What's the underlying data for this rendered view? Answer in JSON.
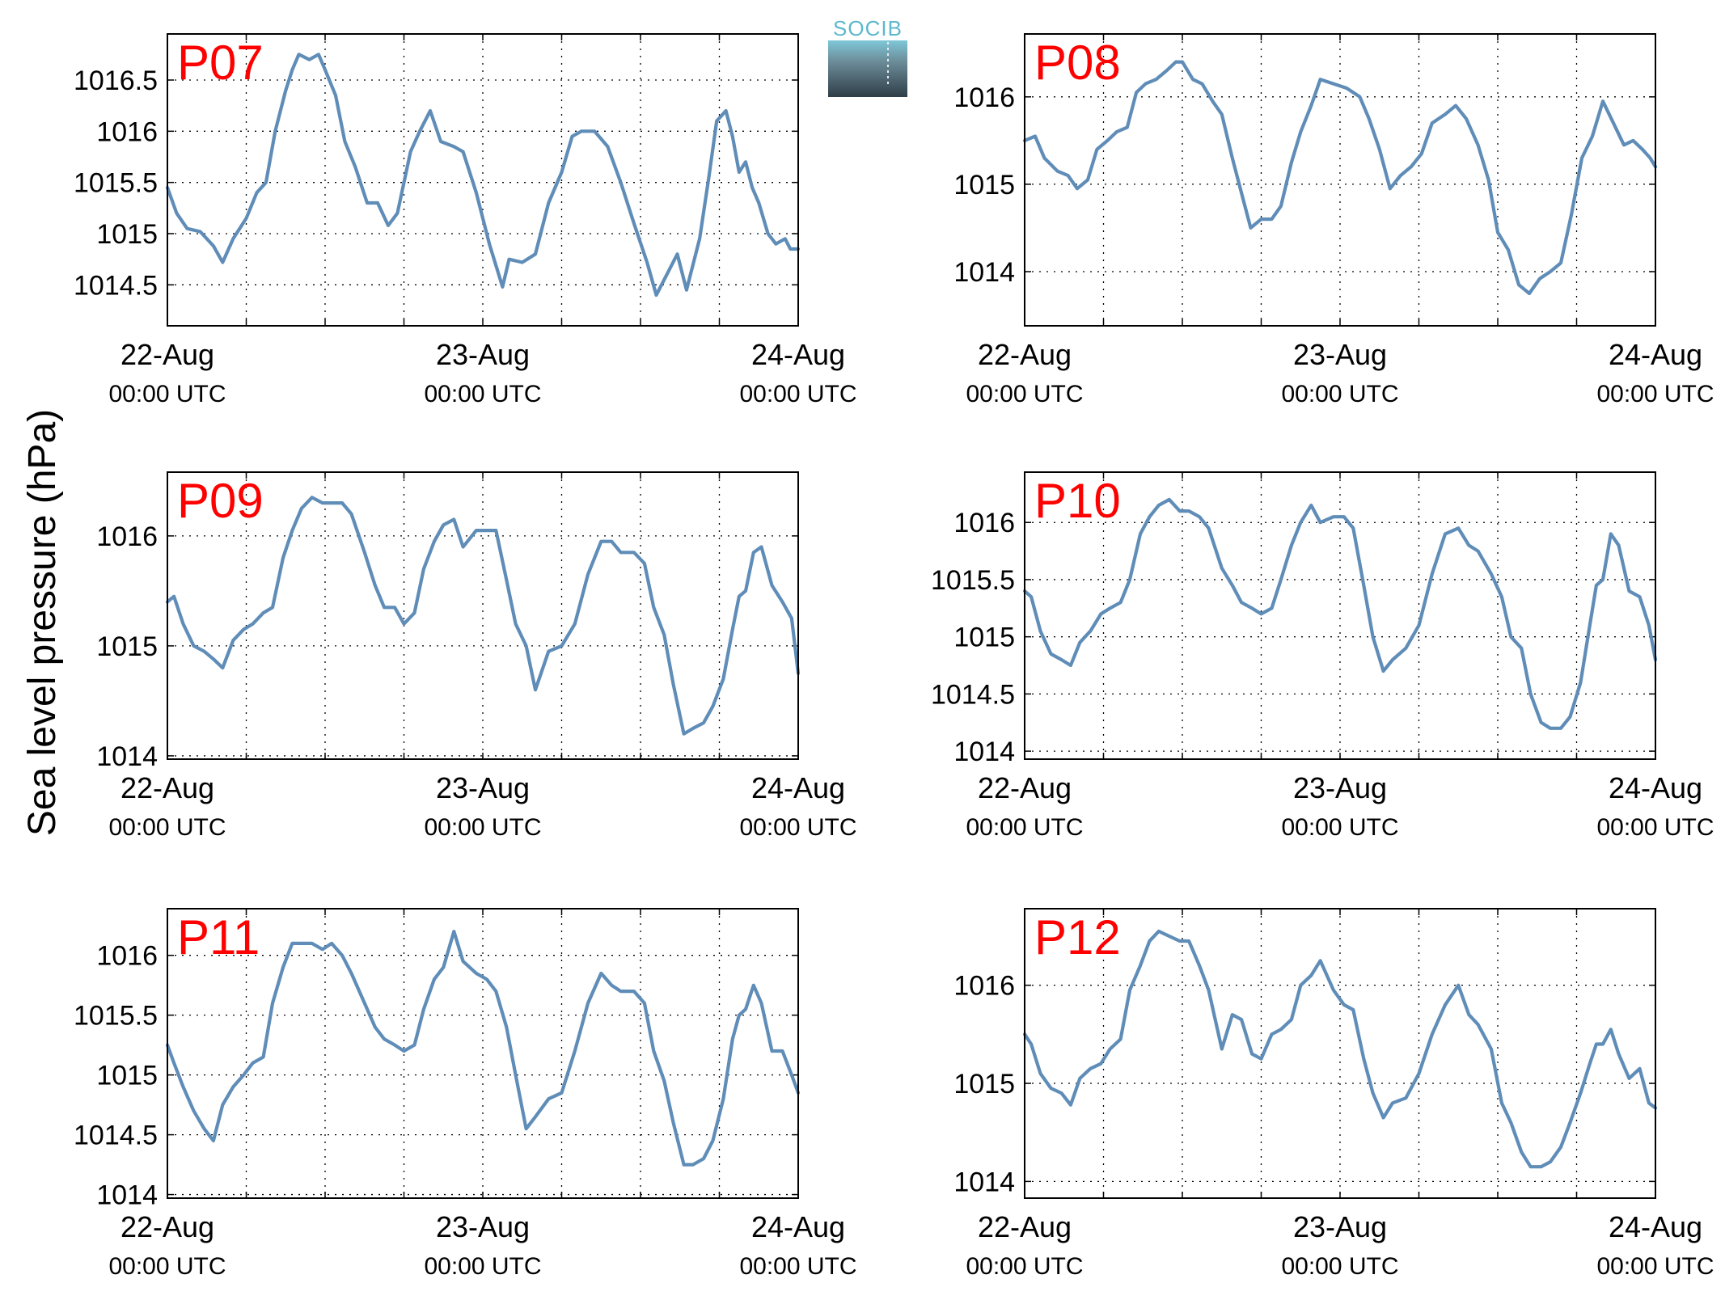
{
  "figure": {
    "ylabel": "Sea level pressure (hPa)",
    "logo_text": "SOCIB"
  },
  "chart_data": [
    {
      "type": "line",
      "label": "P07",
      "ylim": [
        1014.1,
        1016.95
      ],
      "xlim": [
        0,
        48
      ],
      "yticks": [
        1014.5,
        1015,
        1015.5,
        1016,
        1016.5
      ],
      "ytick_labels": [
        "1014.5",
        "1015",
        "1015.5",
        "1016",
        "1016.5"
      ],
      "xtick_labels": [
        [
          "22-Aug",
          "00:00 UTC"
        ],
        [
          "23-Aug",
          "00:00 UTC"
        ],
        [
          "24-Aug",
          "00:00 UTC"
        ]
      ],
      "grid": true,
      "color": "#5f8db8",
      "x": [
        0,
        0.7,
        1.5,
        2.5,
        3.5,
        4.2,
        5,
        6,
        6.8,
        7.5,
        8.2,
        9,
        9.5,
        10,
        10.8,
        11.5,
        12,
        12.8,
        13.5,
        14.3,
        15.2,
        16,
        16.8,
        17.5,
        18.5,
        19.2,
        20,
        20.8,
        21.8,
        22.5,
        23.5,
        24.5,
        25.5,
        26,
        27,
        28,
        29,
        30,
        30.8,
        31.5,
        32.5,
        33.5,
        34.5,
        35.5,
        36.5,
        37.2,
        38,
        38.8,
        39.5,
        40.5,
        41.2,
        41.8,
        42.5,
        43,
        43.5,
        44,
        44.5,
        45,
        45.7,
        46.3,
        47,
        47.4,
        48
      ],
      "y": [
        1015.45,
        1015.2,
        1015.05,
        1015.02,
        1014.88,
        1014.72,
        1014.95,
        1015.15,
        1015.4,
        1015.5,
        1016.0,
        1016.4,
        1016.6,
        1016.75,
        1016.7,
        1016.75,
        1016.6,
        1016.35,
        1015.9,
        1015.65,
        1015.3,
        1015.3,
        1015.08,
        1015.2,
        1015.8,
        1016.0,
        1016.2,
        1015.9,
        1015.85,
        1015.8,
        1015.4,
        1014.9,
        1014.48,
        1014.75,
        1014.72,
        1014.8,
        1015.3,
        1015.6,
        1015.95,
        1016.0,
        1016.0,
        1015.85,
        1015.5,
        1015.1,
        1014.72,
        1014.4,
        1014.6,
        1014.8,
        1014.45,
        1014.95,
        1015.55,
        1016.1,
        1016.2,
        1015.95,
        1015.6,
        1015.7,
        1015.45,
        1015.3,
        1015.0,
        1014.9,
        1014.95,
        1014.85,
        1014.85
      ]
    },
    {
      "type": "line",
      "label": "P08",
      "ylim": [
        1013.38,
        1016.72
      ],
      "xlim": [
        0,
        48
      ],
      "yticks": [
        1014,
        1015,
        1016
      ],
      "ytick_labels": [
        "1014",
        "1015",
        "1016"
      ],
      "xtick_labels": [
        [
          "22-Aug",
          "00:00 UTC"
        ],
        [
          "23-Aug",
          "00:00 UTC"
        ],
        [
          "24-Aug",
          "00:00 UTC"
        ]
      ],
      "grid": true,
      "color": "#5f8db8",
      "x": [
        0,
        0.8,
        1.5,
        2.5,
        3.3,
        4,
        4.8,
        5.5,
        6.3,
        7,
        7.8,
        8.5,
        9.2,
        10,
        10.8,
        11.5,
        12,
        12.8,
        13.5,
        14.3,
        15,
        15.8,
        16.5,
        17.2,
        18,
        18.8,
        19.5,
        20.3,
        21,
        21.8,
        22.5,
        23.5,
        24.5,
        25.5,
        26.2,
        27,
        27.8,
        28.6,
        29.4,
        30.2,
        31,
        32,
        32.8,
        33.6,
        34.5,
        35.3,
        36,
        36.8,
        37.6,
        38.4,
        39.2,
        40,
        40.8,
        41.6,
        42.4,
        43.2,
        44,
        44.8,
        45.6,
        46.3,
        47,
        47.6,
        48
      ],
      "y": [
        1015.5,
        1015.55,
        1015.3,
        1015.15,
        1015.1,
        1014.95,
        1015.05,
        1015.4,
        1015.5,
        1015.6,
        1015.65,
        1016.05,
        1016.15,
        1016.2,
        1016.3,
        1016.4,
        1016.4,
        1016.2,
        1016.15,
        1015.95,
        1015.8,
        1015.3,
        1014.9,
        1014.5,
        1014.6,
        1014.6,
        1014.75,
        1015.25,
        1015.6,
        1015.9,
        1016.2,
        1016.15,
        1016.1,
        1016.0,
        1015.75,
        1015.4,
        1014.95,
        1015.1,
        1015.2,
        1015.35,
        1015.7,
        1015.8,
        1015.9,
        1015.75,
        1015.45,
        1015.05,
        1014.45,
        1014.25,
        1013.85,
        1013.75,
        1013.92,
        1014.0,
        1014.1,
        1014.65,
        1015.3,
        1015.55,
        1015.95,
        1015.7,
        1015.45,
        1015.5,
        1015.4,
        1015.3,
        1015.2
      ]
    },
    {
      "type": "line",
      "label": "P09",
      "ylim": [
        1013.97,
        1016.58
      ],
      "xlim": [
        0,
        48
      ],
      "yticks": [
        1014,
        1015,
        1016
      ],
      "ytick_labels": [
        "1014",
        "1015",
        "1016"
      ],
      "xtick_labels": [
        [
          "22-Aug",
          "00:00 UTC"
        ],
        [
          "23-Aug",
          "00:00 UTC"
        ],
        [
          "24-Aug",
          "00:00 UTC"
        ]
      ],
      "grid": true,
      "color": "#5f8db8",
      "x": [
        0,
        0.5,
        1.2,
        2,
        2.8,
        3.5,
        4.2,
        5,
        5.8,
        6.5,
        7.3,
        8,
        8.8,
        9.5,
        10.2,
        11,
        11.8,
        12.5,
        13.3,
        14,
        15,
        15.8,
        16.5,
        17.3,
        18,
        18.8,
        19.5,
        20.3,
        21,
        21.8,
        22.5,
        23.5,
        24.3,
        25,
        25.8,
        26.5,
        27.3,
        28,
        29,
        30,
        31,
        32,
        33,
        33.8,
        34.5,
        35.5,
        36.3,
        37,
        37.8,
        38.5,
        39.3,
        40,
        40.8,
        41.5,
        42.3,
        43,
        43.5,
        44,
        44.6,
        45.2,
        46,
        46.8,
        47.5,
        48
      ],
      "y": [
        1015.4,
        1015.45,
        1015.2,
        1015.0,
        1014.95,
        1014.88,
        1014.8,
        1015.05,
        1015.15,
        1015.2,
        1015.3,
        1015.35,
        1015.8,
        1016.05,
        1016.25,
        1016.35,
        1016.3,
        1016.3,
        1016.3,
        1016.2,
        1015.85,
        1015.55,
        1015.35,
        1015.35,
        1015.2,
        1015.3,
        1015.7,
        1015.95,
        1016.1,
        1016.15,
        1015.9,
        1016.05,
        1016.05,
        1016.05,
        1015.6,
        1015.2,
        1015.0,
        1014.6,
        1014.95,
        1015.0,
        1015.2,
        1015.65,
        1015.95,
        1015.95,
        1015.85,
        1015.85,
        1015.75,
        1015.35,
        1015.1,
        1014.65,
        1014.2,
        1014.25,
        1014.3,
        1014.45,
        1014.7,
        1015.15,
        1015.45,
        1015.5,
        1015.85,
        1015.9,
        1015.55,
        1015.4,
        1015.25,
        1014.75
      ]
    },
    {
      "type": "line",
      "label": "P10",
      "ylim": [
        1013.93,
        1016.44
      ],
      "xlim": [
        0,
        48
      ],
      "yticks": [
        1014,
        1014.5,
        1015,
        1015.5,
        1016
      ],
      "ytick_labels": [
        "1014",
        "1014.5",
        "1015",
        "1015.5",
        "1016"
      ],
      "xtick_labels": [
        [
          "22-Aug",
          "00:00 UTC"
        ],
        [
          "23-Aug",
          "00:00 UTC"
        ],
        [
          "24-Aug",
          "00:00 UTC"
        ]
      ],
      "grid": true,
      "color": "#5f8db8",
      "x": [
        0,
        0.5,
        1.2,
        2,
        2.8,
        3.5,
        4.2,
        5,
        5.8,
        6.5,
        7.3,
        8,
        8.8,
        9.5,
        10.2,
        11,
        11.8,
        12.5,
        13.3,
        14,
        15,
        15.8,
        16.5,
        17.3,
        18,
        18.8,
        19.5,
        20.3,
        21,
        21.8,
        22.5,
        23.5,
        24.3,
        25,
        25.8,
        26.5,
        27.3,
        28,
        29,
        30,
        31,
        32,
        33,
        33.8,
        34.5,
        35.5,
        36.3,
        37,
        37.8,
        38.5,
        39.3,
        40,
        40.8,
        41.5,
        42.3,
        43,
        43.5,
        44,
        44.6,
        45.2,
        46,
        46.8,
        47.5,
        48
      ],
      "y": [
        1015.4,
        1015.35,
        1015.05,
        1014.85,
        1014.8,
        1014.75,
        1014.95,
        1015.05,
        1015.2,
        1015.25,
        1015.3,
        1015.5,
        1015.9,
        1016.05,
        1016.15,
        1016.2,
        1016.1,
        1016.1,
        1016.05,
        1015.95,
        1015.6,
        1015.45,
        1015.3,
        1015.25,
        1015.2,
        1015.25,
        1015.5,
        1015.8,
        1016.0,
        1016.15,
        1016.0,
        1016.05,
        1016.05,
        1015.95,
        1015.45,
        1015.0,
        1014.7,
        1014.8,
        1014.9,
        1015.1,
        1015.55,
        1015.9,
        1015.95,
        1015.8,
        1015.75,
        1015.55,
        1015.35,
        1015.0,
        1014.9,
        1014.5,
        1014.25,
        1014.2,
        1014.2,
        1014.3,
        1014.6,
        1015.1,
        1015.45,
        1015.5,
        1015.9,
        1015.8,
        1015.4,
        1015.35,
        1015.1,
        1014.8
      ]
    },
    {
      "type": "line",
      "label": "P11",
      "ylim": [
        1013.97,
        1016.39
      ],
      "xlim": [
        0,
        48
      ],
      "yticks": [
        1014,
        1014.5,
        1015,
        1015.5,
        1016
      ],
      "ytick_labels": [
        "1014",
        "1014.5",
        "1015",
        "1015.5",
        "1016"
      ],
      "xtick_labels": [
        [
          "22-Aug",
          "00:00 UTC"
        ],
        [
          "23-Aug",
          "00:00 UTC"
        ],
        [
          "24-Aug",
          "00:00 UTC"
        ]
      ],
      "grid": true,
      "color": "#5f8db8",
      "x": [
        0,
        0.5,
        1.2,
        2,
        2.8,
        3.5,
        4.2,
        5,
        5.8,
        6.5,
        7.3,
        8,
        8.8,
        9.5,
        10.2,
        11,
        11.8,
        12.5,
        13.3,
        14,
        15,
        15.8,
        16.5,
        17.3,
        18,
        18.8,
        19.5,
        20.3,
        21,
        21.8,
        22.5,
        23.5,
        24.3,
        25,
        25.8,
        26.5,
        27.3,
        28,
        29,
        30,
        31,
        32,
        33,
        33.8,
        34.5,
        35.5,
        36.3,
        37,
        37.8,
        38.5,
        39.3,
        40,
        40.8,
        41.5,
        42.3,
        43,
        43.5,
        44,
        44.6,
        45.2,
        46,
        46.8,
        47.5,
        48
      ],
      "y": [
        1015.25,
        1015.1,
        1014.9,
        1014.7,
        1014.55,
        1014.45,
        1014.75,
        1014.9,
        1015.0,
        1015.1,
        1015.15,
        1015.6,
        1015.9,
        1016.1,
        1016.1,
        1016.1,
        1016.05,
        1016.1,
        1016.0,
        1015.85,
        1015.6,
        1015.4,
        1015.3,
        1015.25,
        1015.2,
        1015.25,
        1015.55,
        1015.8,
        1015.9,
        1016.2,
        1015.95,
        1015.85,
        1015.8,
        1015.7,
        1015.4,
        1015.0,
        1014.55,
        1014.65,
        1014.8,
        1014.85,
        1015.2,
        1015.6,
        1015.85,
        1015.75,
        1015.7,
        1015.7,
        1015.6,
        1015.2,
        1014.95,
        1014.6,
        1014.25,
        1014.25,
        1014.3,
        1014.45,
        1014.8,
        1015.3,
        1015.5,
        1015.55,
        1015.75,
        1015.6,
        1015.2,
        1015.2,
        1015.0,
        1014.85
      ]
    },
    {
      "type": "line",
      "label": "P12",
      "ylim": [
        1013.83,
        1016.78
      ],
      "xlim": [
        0,
        48
      ],
      "yticks": [
        1014,
        1015,
        1016
      ],
      "ytick_labels": [
        "1014",
        "1015",
        "1016"
      ],
      "xtick_labels": [
        [
          "22-Aug",
          "00:00 UTC"
        ],
        [
          "23-Aug",
          "00:00 UTC"
        ],
        [
          "24-Aug",
          "00:00 UTC"
        ]
      ],
      "grid": true,
      "color": "#5f8db8",
      "x": [
        0,
        0.5,
        1.2,
        2,
        2.8,
        3.5,
        4.2,
        5,
        5.8,
        6.5,
        7.3,
        8,
        8.8,
        9.5,
        10.2,
        11,
        11.8,
        12.5,
        13.3,
        14,
        15,
        15.8,
        16.5,
        17.3,
        18,
        18.8,
        19.5,
        20.3,
        21,
        21.8,
        22.5,
        23.5,
        24.3,
        25,
        25.8,
        26.5,
        27.3,
        28,
        29,
        30,
        31,
        32,
        33,
        33.8,
        34.5,
        35.5,
        36.3,
        37,
        37.8,
        38.5,
        39.3,
        40,
        40.8,
        41.5,
        42.3,
        43,
        43.5,
        44,
        44.6,
        45.2,
        46,
        46.8,
        47.5,
        48
      ],
      "y": [
        1015.5,
        1015.4,
        1015.1,
        1014.95,
        1014.9,
        1014.78,
        1015.05,
        1015.15,
        1015.2,
        1015.35,
        1015.45,
        1015.95,
        1016.2,
        1016.45,
        1016.55,
        1016.5,
        1016.45,
        1016.45,
        1016.2,
        1015.95,
        1015.35,
        1015.7,
        1015.65,
        1015.3,
        1015.25,
        1015.5,
        1015.55,
        1015.65,
        1016.0,
        1016.1,
        1016.25,
        1015.95,
        1015.8,
        1015.75,
        1015.25,
        1014.9,
        1014.65,
        1014.8,
        1014.85,
        1015.1,
        1015.5,
        1015.8,
        1016.0,
        1015.7,
        1015.6,
        1015.35,
        1014.8,
        1014.6,
        1014.3,
        1014.15,
        1014.15,
        1014.2,
        1014.35,
        1014.6,
        1014.9,
        1015.2,
        1015.4,
        1015.4,
        1015.55,
        1015.3,
        1015.05,
        1015.15,
        1014.8,
        1014.75
      ]
    }
  ]
}
